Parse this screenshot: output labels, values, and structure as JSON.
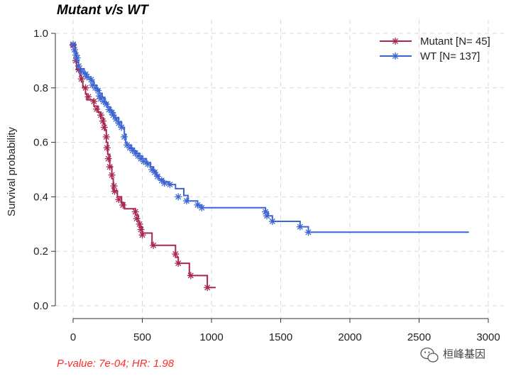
{
  "chart_data": {
    "type": "line",
    "title": "Mutant v/s WT",
    "xlabel": "",
    "ylabel": "Survival probability",
    "xlim": [
      0,
      3000
    ],
    "ylim": [
      0,
      1.0
    ],
    "xticks": [
      "0",
      "500",
      "1000",
      "1500",
      "2000",
      "2500",
      "3000"
    ],
    "yticks": [
      "0.0",
      "0.2",
      "0.4",
      "0.6",
      "0.8",
      "1.0"
    ],
    "grid": true,
    "legend_position": "top-right",
    "series": [
      {
        "name": "Mutant [N= 45]",
        "color": "#a8264f",
        "steps": [
          [
            0,
            0.956
          ],
          [
            15,
            0.933
          ],
          [
            25,
            0.867
          ],
          [
            50,
            0.844
          ],
          [
            60,
            0.822
          ],
          [
            70,
            0.8
          ],
          [
            90,
            0.778
          ],
          [
            100,
            0.756
          ],
          [
            150,
            0.733
          ],
          [
            180,
            0.711
          ],
          [
            200,
            0.689
          ],
          [
            220,
            0.667
          ],
          [
            230,
            0.644
          ],
          [
            240,
            0.6
          ],
          [
            250,
            0.556
          ],
          [
            265,
            0.511
          ],
          [
            280,
            0.467
          ],
          [
            290,
            0.422
          ],
          [
            320,
            0.4
          ],
          [
            350,
            0.378
          ],
          [
            370,
            0.356
          ],
          [
            450,
            0.333
          ],
          [
            470,
            0.311
          ],
          [
            480,
            0.289
          ],
          [
            500,
            0.267
          ],
          [
            570,
            0.222
          ],
          [
            740,
            0.178
          ],
          [
            760,
            0.156
          ],
          [
            840,
            0.111
          ],
          [
            970,
            0.067
          ],
          [
            1030,
            0.067
          ]
        ],
        "censor": [
          [
            0,
            0.956
          ],
          [
            20,
            0.9
          ],
          [
            40,
            0.867
          ],
          [
            60,
            0.833
          ],
          [
            90,
            0.8
          ],
          [
            110,
            0.767
          ],
          [
            150,
            0.75
          ],
          [
            170,
            0.722
          ],
          [
            200,
            0.7
          ],
          [
            215,
            0.678
          ],
          [
            225,
            0.655
          ],
          [
            240,
            0.62
          ],
          [
            245,
            0.58
          ],
          [
            255,
            0.54
          ],
          [
            265,
            0.51
          ],
          [
            280,
            0.48
          ],
          [
            295,
            0.44
          ],
          [
            300,
            0.42
          ],
          [
            330,
            0.39
          ],
          [
            360,
            0.37
          ],
          [
            450,
            0.345
          ],
          [
            460,
            0.32
          ],
          [
            480,
            0.3
          ],
          [
            490,
            0.28
          ],
          [
            500,
            0.26
          ],
          [
            580,
            0.222
          ],
          [
            740,
            0.19
          ],
          [
            760,
            0.156
          ],
          [
            850,
            0.111
          ],
          [
            970,
            0.067
          ]
        ]
      },
      {
        "name": "WT [N= 137]",
        "color": "#3c64d2",
        "steps": [
          [
            0,
            0.935
          ],
          [
            20,
            0.9
          ],
          [
            40,
            0.87
          ],
          [
            80,
            0.855
          ],
          [
            100,
            0.84
          ],
          [
            130,
            0.825
          ],
          [
            150,
            0.81
          ],
          [
            170,
            0.795
          ],
          [
            190,
            0.78
          ],
          [
            210,
            0.765
          ],
          [
            230,
            0.745
          ],
          [
            250,
            0.73
          ],
          [
            270,
            0.715
          ],
          [
            290,
            0.7
          ],
          [
            300,
            0.69
          ],
          [
            330,
            0.675
          ],
          [
            350,
            0.655
          ],
          [
            370,
            0.63
          ],
          [
            380,
            0.6
          ],
          [
            390,
            0.59
          ],
          [
            420,
            0.578
          ],
          [
            440,
            0.568
          ],
          [
            460,
            0.56
          ],
          [
            480,
            0.55
          ],
          [
            500,
            0.54
          ],
          [
            530,
            0.525
          ],
          [
            560,
            0.51
          ],
          [
            580,
            0.495
          ],
          [
            600,
            0.48
          ],
          [
            620,
            0.465
          ],
          [
            650,
            0.455
          ],
          [
            690,
            0.445
          ],
          [
            740,
            0.43
          ],
          [
            800,
            0.405
          ],
          [
            830,
            0.385
          ],
          [
            900,
            0.37
          ],
          [
            930,
            0.36
          ],
          [
            1390,
            0.345
          ],
          [
            1410,
            0.33
          ],
          [
            1440,
            0.31
          ],
          [
            1640,
            0.29
          ],
          [
            1700,
            0.27
          ],
          [
            2860,
            0.27
          ]
        ],
        "censor": [
          [
            0,
            0.96
          ],
          [
            10,
            0.94
          ],
          [
            20,
            0.92
          ],
          [
            30,
            0.91
          ],
          [
            40,
            0.88
          ],
          [
            60,
            0.86
          ],
          [
            90,
            0.85
          ],
          [
            100,
            0.84
          ],
          [
            130,
            0.83
          ],
          [
            140,
            0.81
          ],
          [
            160,
            0.8
          ],
          [
            180,
            0.79
          ],
          [
            190,
            0.77
          ],
          [
            200,
            0.76
          ],
          [
            220,
            0.75
          ],
          [
            240,
            0.74
          ],
          [
            260,
            0.72
          ],
          [
            280,
            0.71
          ],
          [
            290,
            0.7
          ],
          [
            310,
            0.685
          ],
          [
            330,
            0.67
          ],
          [
            350,
            0.655
          ],
          [
            370,
            0.62
          ],
          [
            390,
            0.59
          ],
          [
            410,
            0.58
          ],
          [
            430,
            0.57
          ],
          [
            450,
            0.56
          ],
          [
            470,
            0.55
          ],
          [
            490,
            0.54
          ],
          [
            510,
            0.53
          ],
          [
            540,
            0.52
          ],
          [
            570,
            0.5
          ],
          [
            590,
            0.49
          ],
          [
            610,
            0.475
          ],
          [
            640,
            0.46
          ],
          [
            660,
            0.45
          ],
          [
            700,
            0.445
          ],
          [
            760,
            0.4
          ],
          [
            820,
            0.385
          ],
          [
            900,
            0.37
          ],
          [
            930,
            0.36
          ],
          [
            1390,
            0.345
          ],
          [
            1400,
            0.33
          ],
          [
            1440,
            0.31
          ],
          [
            1640,
            0.29
          ],
          [
            1700,
            0.27
          ]
        ]
      }
    ],
    "annotation": "P-value: 7e-04; HR: 1.98"
  },
  "watermark": {
    "icon": "wechat-icon",
    "text": "桓峰基因"
  }
}
